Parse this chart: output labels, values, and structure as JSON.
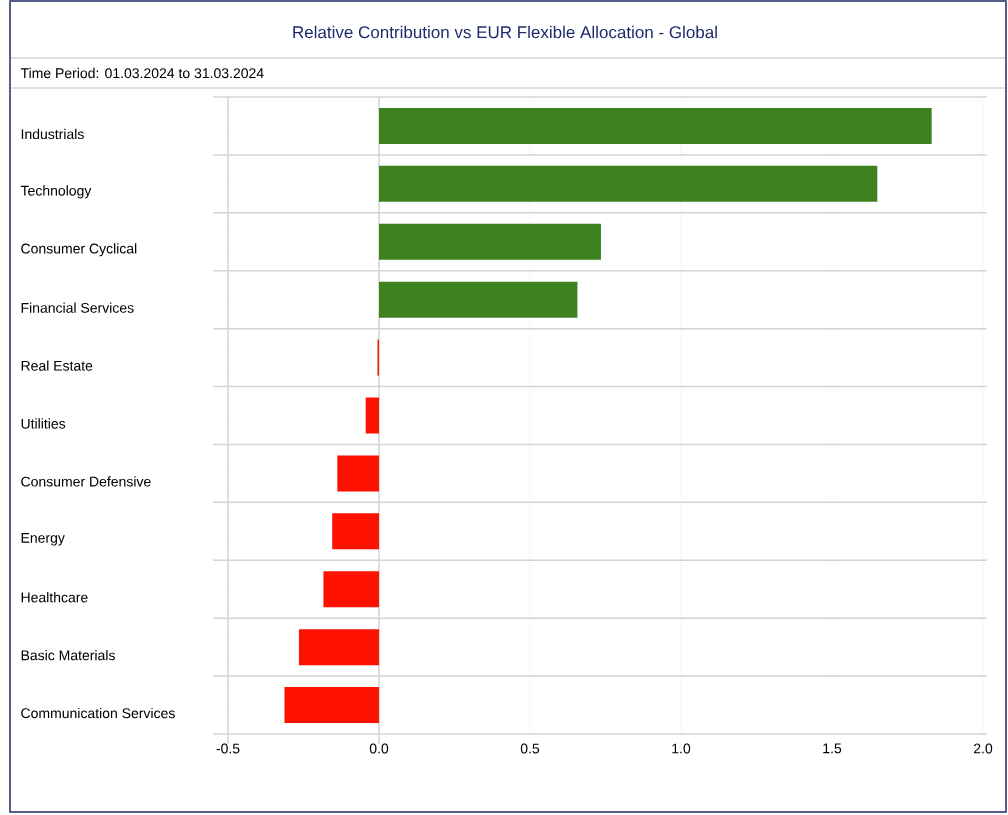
{
  "chart_data": {
    "type": "bar",
    "orientation": "horizontal",
    "title": "Relative Contribution vs EUR Flexible Allocation - Global",
    "subtitle": "Time Period: 01.03.2024 to 31.03.2024",
    "categories": [
      "Industrials",
      "Technology",
      "Consumer Cyclical",
      "Financial Services",
      "Real Estate",
      "Utilities",
      "Consumer Defensive",
      "Energy",
      "Healthcare",
      "Basic Materials",
      "Communication Services"
    ],
    "values": [
      1.83,
      1.65,
      0.735,
      0.657,
      -0.005,
      -0.044,
      -0.138,
      -0.155,
      -0.184,
      -0.265,
      -0.313
    ],
    "colors": [
      "#3e8220",
      "#3e8220",
      "#3e8220",
      "#3e8220",
      "#ff1100",
      "#ff1100",
      "#ff1100",
      "#ff1100",
      "#ff1100",
      "#ff1100",
      "#ff1100"
    ],
    "xlim": [
      -0.5,
      2.0
    ],
    "xticks": [
      -0.5,
      {
        "value": 0,
        "label": "0.0"
      },
      0.5,
      {
        "value": 1,
        "label": "1.0"
      },
      1.5,
      {
        "value": 2,
        "label": "2.0"
      }
    ],
    "grid": "x"
  }
}
